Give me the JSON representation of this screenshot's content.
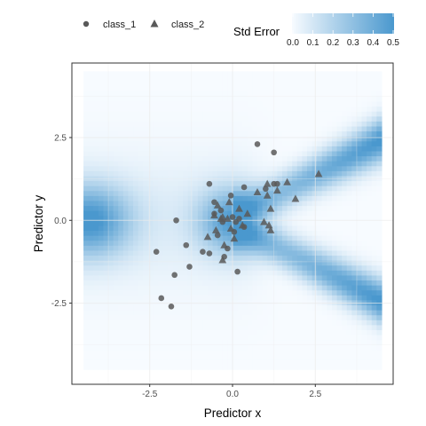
{
  "chart_data": {
    "type": "scatter",
    "title": "",
    "xlabel": "Predictor x",
    "ylabel": "Predictor y",
    "xlim": [
      -4.85,
      4.85
    ],
    "ylim": [
      -4.95,
      4.75
    ],
    "x_ticks": [
      -2.5,
      0.0,
      2.5
    ],
    "y_ticks": [
      -2.5,
      0.0,
      2.5
    ],
    "grid": true,
    "legend_position": "top",
    "heatmap": {
      "name": "Std Error",
      "range": [
        0,
        0.5
      ],
      "ticks": [
        0.0,
        0.1,
        0.2,
        0.3,
        0.4,
        0.5
      ],
      "tick_labels": [
        "0.0",
        "0.1",
        "0.2",
        "0.3",
        "0.4",
        "0.5"
      ],
      "color_low": "#f7fbff",
      "color_high": "#4a98ce",
      "extent_x": [
        -4.5,
        4.5
      ],
      "extent_y": [
        -4.5,
        4.5
      ]
    },
    "series": [
      {
        "name": "class_1",
        "marker": "circle",
        "color": "#595959",
        "points": [
          [
            -2.3,
            -0.95
          ],
          [
            -2.15,
            -2.35
          ],
          [
            -1.85,
            -2.6
          ],
          [
            -1.75,
            -1.65
          ],
          [
            -1.7,
            0.0
          ],
          [
            -1.4,
            -0.75
          ],
          [
            -1.3,
            -1.4
          ],
          [
            -0.9,
            -0.95
          ],
          [
            -0.7,
            -1.0
          ],
          [
            -0.7,
            1.1
          ],
          [
            -0.55,
            0.55
          ],
          [
            -0.55,
            0.2
          ],
          [
            -0.45,
            -0.45
          ],
          [
            -0.35,
            0.3
          ],
          [
            -0.3,
            -0.05
          ],
          [
            -0.25,
            -1.1
          ],
          [
            -0.15,
            -0.85
          ],
          [
            -0.05,
            0.75
          ],
          [
            0.0,
            0.1
          ],
          [
            0.05,
            -0.35
          ],
          [
            0.1,
            -0.05
          ],
          [
            0.15,
            -1.55
          ],
          [
            0.2,
            0.05
          ],
          [
            0.35,
            1.0
          ],
          [
            0.35,
            -0.2
          ],
          [
            0.75,
            2.3
          ],
          [
            1.0,
            0.95
          ],
          [
            1.25,
            2.05
          ],
          [
            1.25,
            1.1
          ],
          [
            1.35,
            1.1
          ]
        ]
      },
      {
        "name": "class_2",
        "marker": "triangle",
        "color": "#595959",
        "points": [
          [
            -0.75,
            -0.5
          ],
          [
            -0.55,
            0.15
          ],
          [
            -0.5,
            -0.3
          ],
          [
            -0.45,
            0.45
          ],
          [
            -0.35,
            0.05
          ],
          [
            -0.3,
            -1.2
          ],
          [
            -0.3,
            0.1
          ],
          [
            -0.25,
            -0.75
          ],
          [
            -0.15,
            0.05
          ],
          [
            -0.1,
            0.55
          ],
          [
            -0.05,
            -0.25
          ],
          [
            0.05,
            -0.55
          ],
          [
            0.2,
            0.35
          ],
          [
            0.3,
            -0.15
          ],
          [
            0.45,
            0.2
          ],
          [
            0.75,
            0.85
          ],
          [
            0.95,
            -0.05
          ],
          [
            1.05,
            0.75
          ],
          [
            1.05,
            1.1
          ],
          [
            1.1,
            -0.15
          ],
          [
            1.15,
            0.35
          ],
          [
            1.15,
            -0.3
          ],
          [
            1.35,
            0.9
          ],
          [
            1.65,
            1.15
          ],
          [
            1.9,
            0.65
          ],
          [
            2.6,
            1.4
          ]
        ]
      }
    ]
  }
}
